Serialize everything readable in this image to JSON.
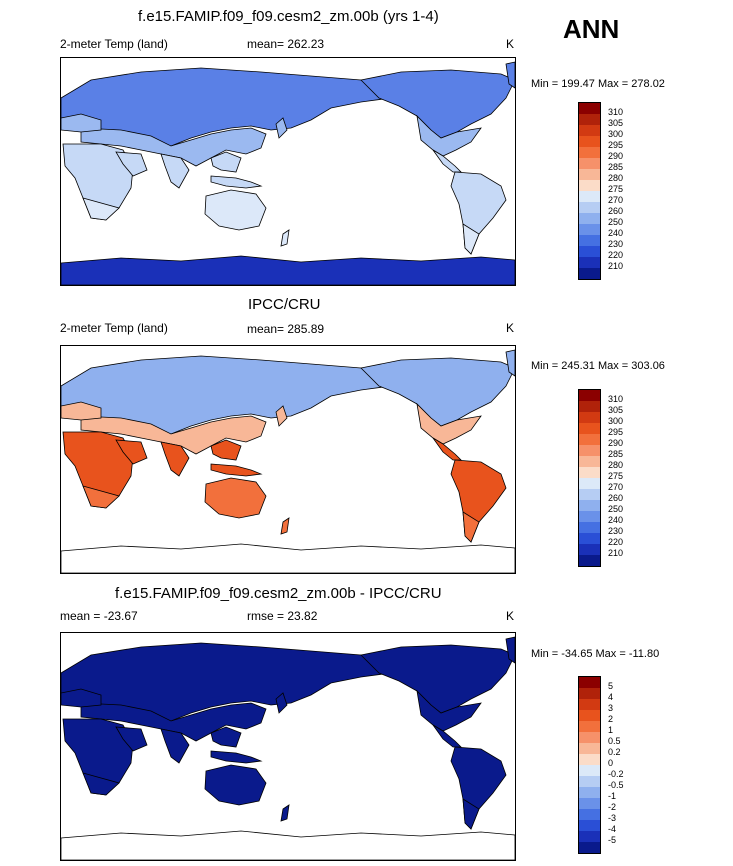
{
  "season": "ANN",
  "panels": [
    {
      "title": "f.e15.FAMIP.f09_f09.cesm2_zm.00b (yrs 1-4)",
      "left_label": "2-meter Temp (land)",
      "center_label": "mean= 262.23",
      "units": "K",
      "minmax": "Min = 199.47 Max = 278.02"
    },
    {
      "title": "IPCC/CRU",
      "left_label": "2-meter Temp (land)",
      "center_label": "mean= 285.89",
      "units": "K",
      "minmax": "Min = 245.31 Max = 303.06"
    },
    {
      "title": "f.e15.FAMIP.f09_f09.cesm2_zm.00b - IPCC/CRU",
      "left_label": "mean = -23.67",
      "center_label": "rmse =  23.82",
      "units": "K",
      "minmax": "Min = -34.65 Max = -11.80"
    }
  ],
  "colorbars": {
    "temp": {
      "labels": [
        "310",
        "305",
        "300",
        "295",
        "290",
        "285",
        "280",
        "275",
        "270",
        "260",
        "250",
        "240",
        "230",
        "220",
        "210"
      ],
      "colors": [
        "#8b0000",
        "#b0220a",
        "#d23a12",
        "#e8531d",
        "#f2703c",
        "#f6916a",
        "#f8b797",
        "#fbdcc8",
        "#dce9f8",
        "#b6cdf3",
        "#8fb0ee",
        "#6a91e9",
        "#4570e2",
        "#2a4fd6",
        "#1a30b8",
        "#0a1a8c"
      ]
    },
    "diff": {
      "labels": [
        "5",
        "4",
        "3",
        "2",
        "1",
        "0.5",
        "0.2",
        "0",
        "-0.2",
        "-0.5",
        "-1",
        "-2",
        "-3",
        "-4",
        "-5"
      ],
      "colors": [
        "#8b0000",
        "#b0220a",
        "#d23a12",
        "#e8531d",
        "#f2703c",
        "#f6916a",
        "#f8b797",
        "#fbdcc8",
        "#dce9f8",
        "#b6cdf3",
        "#8fb0ee",
        "#6a91e9",
        "#4570e2",
        "#2a4fd6",
        "#1a30b8",
        "#0a1a8c"
      ]
    }
  },
  "map_fill": {
    "panel1": {
      "north": "#5a80e6",
      "mid": "#9bb9f0",
      "tropics": "#c6d9f6",
      "south": "#dce8f9",
      "antarctica": "#1a30b8"
    },
    "panel2": {
      "north": "#8fb0ee",
      "mid": "#f8b797",
      "tropics": "#e8531d",
      "south": "#f2703c",
      "antarctica": "#ffffff"
    },
    "panel3": {
      "north": "#0a1a8c",
      "mid": "#0a1a8c",
      "tropics": "#0a1a8c",
      "south": "#0a1a8c",
      "antarctica": "#ffffff"
    }
  }
}
